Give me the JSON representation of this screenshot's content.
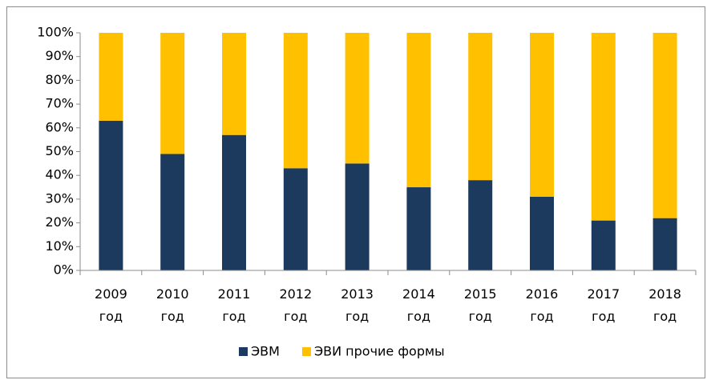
{
  "chart_data": {
    "type": "stacked_bar_100",
    "categories": [
      "2009 год",
      "2010 год",
      "2011 год",
      "2012 год",
      "2013 год",
      "2014 год",
      "2015 год",
      "2016 год",
      "2017 год",
      "2018 год"
    ],
    "series": [
      {
        "name": "ЭВМ",
        "color": "#1b3a5e",
        "values": [
          63,
          49,
          57,
          43,
          45,
          35,
          38,
          31,
          21,
          22
        ]
      },
      {
        "name": "ЭВИ прочие формы",
        "color": "#ffc000",
        "values": [
          37,
          51,
          43,
          57,
          55,
          65,
          62,
          69,
          79,
          78
        ]
      }
    ],
    "ylim": [
      0,
      100
    ],
    "yticks": [
      {
        "value": 0,
        "label": "0%"
      },
      {
        "value": 10,
        "label": "10%"
      },
      {
        "value": 20,
        "label": "20%"
      },
      {
        "value": 30,
        "label": "30%"
      },
      {
        "value": 40,
        "label": "40%"
      },
      {
        "value": 50,
        "label": "50%"
      },
      {
        "value": 60,
        "label": "60%"
      },
      {
        "value": 70,
        "label": "70%"
      },
      {
        "value": 80,
        "label": "80%"
      },
      {
        "value": 90,
        "label": "90%"
      },
      {
        "value": 100,
        "label": "100%"
      }
    ],
    "grid": false,
    "legend": "bottom"
  }
}
